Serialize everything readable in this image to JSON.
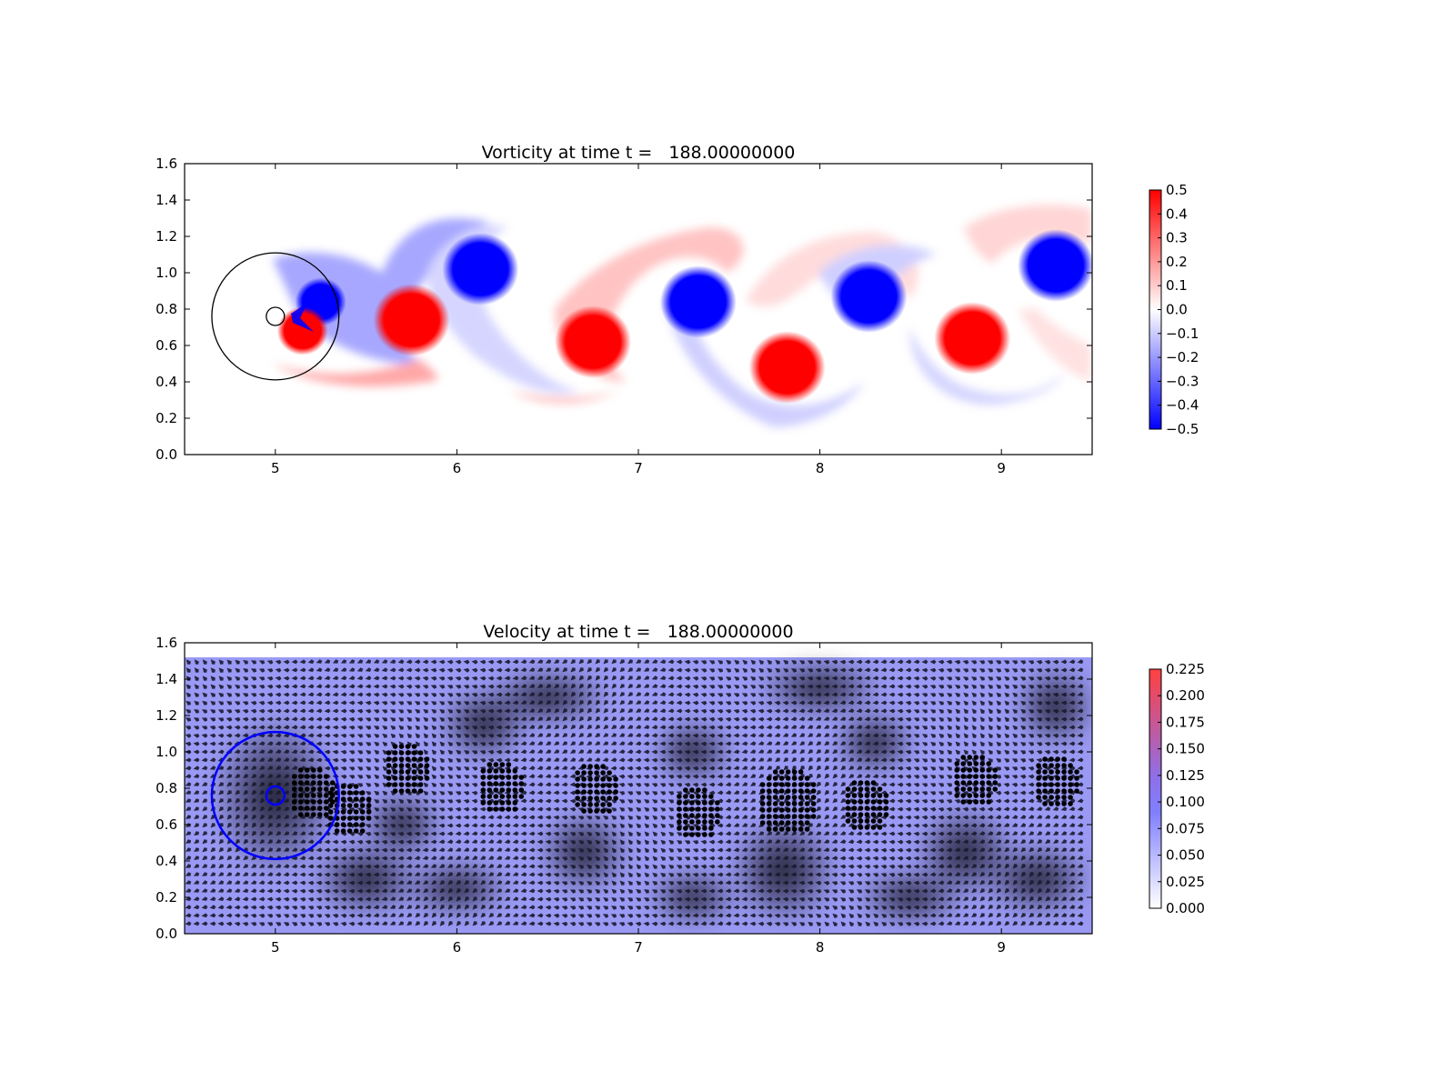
{
  "chart_data": [
    {
      "type": "heatmap",
      "title": "Vorticity at time t =   188.00000000",
      "xlim": [
        4.5,
        9.5
      ],
      "ylim": [
        0.0,
        1.6
      ],
      "xticks": [
        "5",
        "6",
        "7",
        "8",
        "9"
      ],
      "yticks": [
        "0.0",
        "0.2",
        "0.4",
        "0.6",
        "0.8",
        "1.0",
        "1.2",
        "1.4",
        "1.6"
      ],
      "colormap": "bwr",
      "colors": {
        "low": "#0000ff",
        "mid": "#ffffff",
        "high": "#ff0000"
      },
      "clim": [
        -0.5,
        0.5
      ],
      "colorbar_ticks": [
        "0.5",
        "0.4",
        "0.3",
        "0.2",
        "0.1",
        "0.0",
        "−0.1",
        "−0.2",
        "−0.3",
        "−0.4",
        "−0.5"
      ],
      "vortices": [
        {
          "x": 5.25,
          "y": 0.84,
          "vorticity": -0.5
        },
        {
          "x": 5.15,
          "y": 0.68,
          "vorticity": 0.5
        },
        {
          "x": 5.75,
          "y": 0.74,
          "vorticity": 0.5
        },
        {
          "x": 6.13,
          "y": 1.02,
          "vorticity": -0.5
        },
        {
          "x": 6.75,
          "y": 0.62,
          "vorticity": 0.5
        },
        {
          "x": 7.33,
          "y": 0.84,
          "vorticity": -0.5
        },
        {
          "x": 7.82,
          "y": 0.48,
          "vorticity": 0.5
        },
        {
          "x": 8.27,
          "y": 0.87,
          "vorticity": -0.5
        },
        {
          "x": 8.84,
          "y": 0.64,
          "vorticity": 0.5
        },
        {
          "x": 9.3,
          "y": 1.04,
          "vorticity": -0.5
        }
      ],
      "circles": [
        {
          "cx": 5.0,
          "cy": 0.76,
          "r": 0.35,
          "color": "#000000"
        },
        {
          "cx": 5.0,
          "cy": 0.76,
          "r": 0.05,
          "color": "#000000"
        }
      ]
    },
    {
      "type": "quiver",
      "title": "Velocity at time t =   188.00000000",
      "xlim": [
        4.5,
        9.5
      ],
      "ylim": [
        0.0,
        1.6
      ],
      "xticks": [
        "5",
        "6",
        "7",
        "8",
        "9"
      ],
      "yticks": [
        "0.0",
        "0.2",
        "0.4",
        "0.6",
        "0.8",
        "1.0",
        "1.2",
        "1.4",
        "1.6"
      ],
      "colors": {
        "low": "#ffffff",
        "mid": "#8080ff",
        "high": "#ff4040"
      },
      "clim": [
        0.0,
        0.225
      ],
      "colorbar_ticks": [
        "0.225",
        "0.200",
        "0.175",
        "0.150",
        "0.125",
        "0.100",
        "0.075",
        "0.050",
        "0.025",
        "0.000"
      ],
      "field_ylim": [
        0.0,
        1.52
      ],
      "dot_clusters": [
        {
          "x": 5.2,
          "y": 0.77
        },
        {
          "x": 5.4,
          "y": 0.68
        },
        {
          "x": 5.72,
          "y": 0.9
        },
        {
          "x": 6.24,
          "y": 0.8
        },
        {
          "x": 6.76,
          "y": 0.79
        },
        {
          "x": 7.32,
          "y": 0.66
        },
        {
          "x": 7.82,
          "y": 0.72
        },
        {
          "x": 8.25,
          "y": 0.7
        },
        {
          "x": 8.85,
          "y": 0.84
        },
        {
          "x": 9.3,
          "y": 0.83
        }
      ],
      "circles": [
        {
          "cx": 5.0,
          "cy": 0.76,
          "r": 0.35,
          "color": "#0000ff"
        },
        {
          "cx": 5.0,
          "cy": 0.76,
          "r": 0.05,
          "color": "#0000ff"
        }
      ]
    }
  ]
}
